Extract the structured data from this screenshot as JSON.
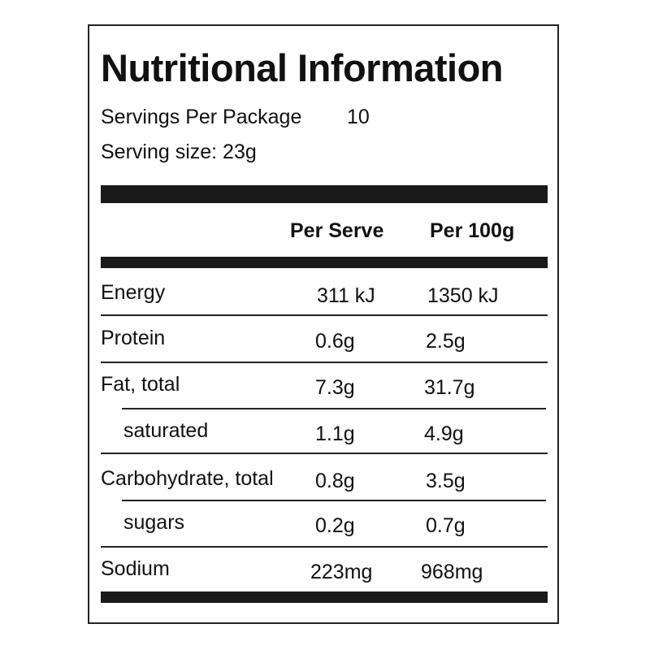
{
  "header": {
    "title": "Nutritional Information",
    "servings_label": "Servings Per Package",
    "servings_value": "10",
    "serving_size": "Serving size: 23g"
  },
  "table": {
    "columns": [
      "Per Serve",
      "Per 100g"
    ],
    "rows": [
      [
        "Energy",
        "311 kJ",
        "1350 kJ"
      ],
      [
        "Protein",
        "0.6g",
        "2.5g"
      ],
      [
        "Fat, total",
        "7.3g",
        "31.7g"
      ],
      [
        "saturated",
        "1.1g",
        "4.9g"
      ],
      [
        "Carbohydrate, total",
        "0.8g",
        "3.5g"
      ],
      [
        "sugars",
        "0.2g",
        "0.7g"
      ],
      [
        "Sodium",
        "223mg",
        "968mg"
      ]
    ]
  }
}
